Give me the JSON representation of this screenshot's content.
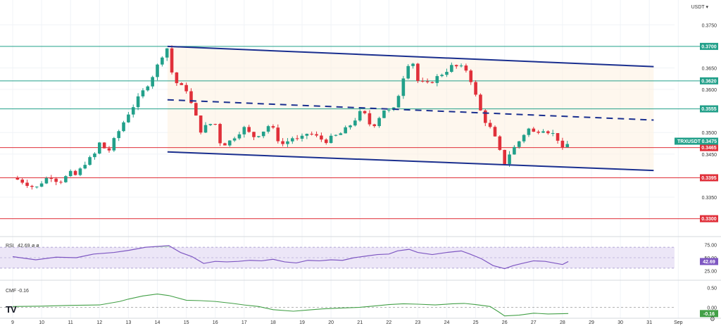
{
  "currency_selector": "USDT",
  "logo": "TV",
  "settings_icon": "gear-icon",
  "chart_data": [
    {
      "type": "candlestick",
      "symbol": "TRXUSDT",
      "ylim": [
        0.3265,
        0.3775
      ],
      "y_ticks": [
        "0.3750",
        "0.3650",
        "0.3600",
        "0.3500",
        "0.3450",
        "0.3350"
      ],
      "x_ticks": [
        {
          "label": "9",
          "day": 9
        },
        {
          "label": "10",
          "day": 10
        },
        {
          "label": "11",
          "day": 11
        },
        {
          "label": "12",
          "day": 12
        },
        {
          "label": "13",
          "day": 13
        },
        {
          "label": "14",
          "day": 14
        },
        {
          "label": "15",
          "day": 15
        },
        {
          "label": "16",
          "day": 16
        },
        {
          "label": "17",
          "day": 17
        },
        {
          "label": "18",
          "day": 18
        },
        {
          "label": "19",
          "day": 19
        },
        {
          "label": "20",
          "day": 20
        },
        {
          "label": "21",
          "day": 21
        },
        {
          "label": "22",
          "day": 22
        },
        {
          "label": "23",
          "day": 23
        },
        {
          "label": "24",
          "day": 24
        },
        {
          "label": "25",
          "day": 25
        },
        {
          "label": "26",
          "day": 26
        },
        {
          "label": "27",
          "day": 27
        },
        {
          "label": "28",
          "day": 28
        },
        {
          "label": "29",
          "day": 29
        },
        {
          "label": "30",
          "day": 30
        },
        {
          "label": "31",
          "day": 31
        },
        {
          "label": "Sep",
          "day": 32
        }
      ],
      "levels": [
        {
          "value": 0.37,
          "label": "0.3700",
          "color": "#22a08a"
        },
        {
          "value": 0.362,
          "label": "0.3620",
          "color": "#22a08a"
        },
        {
          "value": 0.3555,
          "label": "0.3555",
          "color": "#22a08a"
        },
        {
          "value": 0.3465,
          "label": "0.3465",
          "color": "#e0303a"
        },
        {
          "value": 0.3395,
          "label": "0.3395",
          "color": "#e0303a"
        },
        {
          "value": 0.33,
          "label": "0.3300",
          "color": "#e0303a"
        }
      ],
      "price_tag": {
        "symbol": "TRXUSDT",
        "value": "0.3475",
        "price": 0.3475,
        "color": "#22a08a"
      },
      "channel": {
        "upper": {
          "x": [
            14.35,
            31.15
          ],
          "y": [
            0.37,
            0.3653
          ]
        },
        "middle": {
          "x": [
            14.35,
            31.15
          ],
          "y": [
            0.3576,
            0.3529
          ]
        },
        "lower": {
          "x": [
            14.35,
            31.15
          ],
          "y": [
            0.3455,
            0.3412
          ]
        },
        "fill_start_day": 14.35,
        "fill_end_day": 31.15,
        "color": "#1a2f8f"
      },
      "candles_per_day": 6,
      "start_day": 9,
      "close_path": [
        [
          9,
          0.3395
        ],
        [
          9.4,
          0.3385
        ],
        [
          9.8,
          0.337
        ],
        [
          10,
          0.3385
        ],
        [
          10.3,
          0.34
        ],
        [
          10.6,
          0.3385
        ],
        [
          11,
          0.3405
        ],
        [
          11.2,
          0.34
        ],
        [
          11.5,
          0.343
        ],
        [
          11.8,
          0.3445
        ],
        [
          12,
          0.3475
        ],
        [
          12.3,
          0.3455
        ],
        [
          12.6,
          0.3495
        ],
        [
          12.8,
          0.352
        ],
        [
          13,
          0.3545
        ],
        [
          13.3,
          0.3575
        ],
        [
          13.6,
          0.3605
        ],
        [
          13.9,
          0.364
        ],
        [
          14.2,
          0.3685
        ],
        [
          14.38,
          0.37
        ],
        [
          14.5,
          0.364
        ],
        [
          14.7,
          0.361
        ],
        [
          15,
          0.36
        ],
        [
          15.2,
          0.356
        ],
        [
          15.5,
          0.3505
        ],
        [
          15.8,
          0.352
        ],
        [
          16,
          0.352
        ],
        [
          16.2,
          0.347
        ],
        [
          16.5,
          0.348
        ],
        [
          16.8,
          0.35
        ],
        [
          17,
          0.351
        ],
        [
          17.3,
          0.349
        ],
        [
          17.6,
          0.35
        ],
        [
          17.9,
          0.352
        ],
        [
          18.2,
          0.348
        ],
        [
          18.4,
          0.347
        ],
        [
          18.6,
          0.349
        ],
        [
          18.9,
          0.348
        ],
        [
          19.2,
          0.35
        ],
        [
          19.5,
          0.349
        ],
        [
          19.8,
          0.348
        ],
        [
          20.1,
          0.349
        ],
        [
          20.4,
          0.35
        ],
        [
          20.7,
          0.352
        ],
        [
          21,
          0.3545
        ],
        [
          21.2,
          0.354
        ],
        [
          21.4,
          0.351
        ],
        [
          21.6,
          0.353
        ],
        [
          21.9,
          0.356
        ],
        [
          22.1,
          0.354
        ],
        [
          22.3,
          0.358
        ],
        [
          22.6,
          0.3655
        ],
        [
          22.8,
          0.367
        ],
        [
          23,
          0.362
        ],
        [
          23.3,
          0.361
        ],
        [
          23.6,
          0.3625
        ],
        [
          23.9,
          0.364
        ],
        [
          24.2,
          0.3655
        ],
        [
          24.5,
          0.365
        ],
        [
          24.7,
          0.3645
        ],
        [
          24.9,
          0.361
        ],
        [
          25.1,
          0.356
        ],
        [
          25.3,
          0.353
        ],
        [
          25.6,
          0.35
        ],
        [
          25.8,
          0.346
        ],
        [
          26,
          0.343
        ],
        [
          26.2,
          0.3455
        ],
        [
          26.4,
          0.347
        ],
        [
          26.6,
          0.349
        ],
        [
          26.8,
          0.351
        ],
        [
          27,
          0.35
        ],
        [
          27.3,
          0.351
        ],
        [
          27.6,
          0.35
        ],
        [
          27.8,
          0.349
        ],
        [
          28,
          0.346
        ],
        [
          28.2,
          0.3475
        ]
      ]
    },
    {
      "type": "line",
      "name": "RSI",
      "label": "RSI",
      "current": "42.69",
      "symbols": "ø ø",
      "ylim": [
        15,
        85
      ],
      "band": [
        30,
        70
      ],
      "y_ticks": [
        "75.00",
        "50.00",
        "25.00"
      ],
      "points": [
        [
          9,
          52
        ],
        [
          9.8,
          46
        ],
        [
          10.5,
          51
        ],
        [
          11.2,
          50
        ],
        [
          11.8,
          57
        ],
        [
          12.5,
          60
        ],
        [
          13,
          64
        ],
        [
          13.6,
          70
        ],
        [
          14.4,
          73
        ],
        [
          14.8,
          60
        ],
        [
          15.2,
          52
        ],
        [
          15.6,
          39
        ],
        [
          16,
          43
        ],
        [
          16.4,
          42
        ],
        [
          16.8,
          43
        ],
        [
          17.2,
          45
        ],
        [
          17.6,
          44
        ],
        [
          18,
          47
        ],
        [
          18.4,
          42
        ],
        [
          18.8,
          40
        ],
        [
          19.2,
          45
        ],
        [
          19.6,
          44
        ],
        [
          20,
          46
        ],
        [
          20.4,
          45
        ],
        [
          20.8,
          50
        ],
        [
          21.2,
          53
        ],
        [
          21.6,
          56
        ],
        [
          22,
          57
        ],
        [
          22.3,
          63
        ],
        [
          22.7,
          66
        ],
        [
          23,
          60
        ],
        [
          23.5,
          56
        ],
        [
          24,
          60
        ],
        [
          24.5,
          63
        ],
        [
          24.8,
          57
        ],
        [
          25.2,
          48
        ],
        [
          25.6,
          35
        ],
        [
          26,
          29
        ],
        [
          26.3,
          35
        ],
        [
          26.6,
          39
        ],
        [
          27,
          44
        ],
        [
          27.4,
          43
        ],
        [
          27.8,
          39
        ],
        [
          28,
          37
        ],
        [
          28.2,
          42.69
        ]
      ],
      "overbought_fill_color": "#c7eec3"
    },
    {
      "type": "line",
      "name": "CMF",
      "label": "CMF",
      "current": "-0.16",
      "ylim": [
        -0.28,
        0.62
      ],
      "y_ticks": [
        "0.50",
        "0.00"
      ],
      "points": [
        [
          9,
          0.02
        ],
        [
          10,
          0.03
        ],
        [
          11,
          0.05
        ],
        [
          12,
          0.06
        ],
        [
          12.7,
          0.15
        ],
        [
          13,
          0.21
        ],
        [
          13.5,
          0.29
        ],
        [
          14,
          0.34
        ],
        [
          14.4,
          0.3
        ],
        [
          15,
          0.18
        ],
        [
          15.5,
          0.17
        ],
        [
          16,
          0.15
        ],
        [
          16.6,
          0.1
        ],
        [
          17,
          0.06
        ],
        [
          17.5,
          0.02
        ],
        [
          18,
          -0.06
        ],
        [
          18.7,
          -0.1
        ],
        [
          19.2,
          -0.07
        ],
        [
          19.7,
          -0.04
        ],
        [
          20.3,
          -0.02
        ],
        [
          21,
          0.0
        ],
        [
          21.6,
          0.04
        ],
        [
          22,
          0.07
        ],
        [
          22.5,
          0.09
        ],
        [
          23,
          0.08
        ],
        [
          23.6,
          0.06
        ],
        [
          24.2,
          0.09
        ],
        [
          24.6,
          0.1
        ],
        [
          25,
          0.07
        ],
        [
          25.5,
          0.02
        ],
        [
          25.8,
          -0.12
        ],
        [
          26,
          -0.22
        ],
        [
          26.5,
          -0.2
        ],
        [
          27,
          -0.15
        ],
        [
          27.5,
          -0.17
        ],
        [
          28.2,
          -0.16
        ]
      ]
    }
  ]
}
